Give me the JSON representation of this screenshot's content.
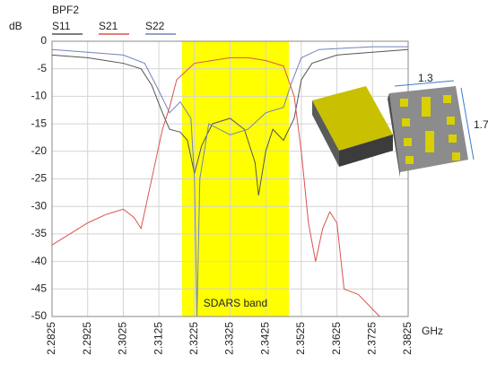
{
  "chart_data": {
    "type": "line",
    "title": "BPF2",
    "y_label": "dB",
    "x_label": "GHz",
    "xlim": [
      2.2825,
      2.3825
    ],
    "xticks": [
      2.2825,
      2.2925,
      2.3025,
      2.3125,
      2.3225,
      2.3325,
      2.3425,
      2.3525,
      2.3625,
      2.3725,
      2.3825
    ],
    "ylim": [
      -50,
      0
    ],
    "yticks": [
      0,
      -5,
      -10,
      -15,
      -20,
      -25,
      -30,
      -35,
      -40,
      -45,
      -50
    ],
    "grid": true,
    "band": {
      "xlim": [
        2.319,
        2.349
      ],
      "label": "SDARS band",
      "color": "#ffff00"
    },
    "series": [
      {
        "name": "S11",
        "color": "#555555",
        "x": [
          2.2825,
          2.2925,
          2.3025,
          2.3075,
          2.3105,
          2.3135,
          2.3155,
          2.3185,
          2.3205,
          2.3225,
          2.3245,
          2.3275,
          2.3325,
          2.3365,
          2.3395,
          2.3405,
          2.3425,
          2.3445,
          2.3475,
          2.3505,
          2.3525,
          2.3555,
          2.3625,
          2.3725,
          2.3825
        ],
        "values": [
          -2.5,
          -3,
          -4,
          -5,
          -8,
          -13,
          -16,
          -16.5,
          -18,
          -24,
          -19,
          -15,
          -14,
          -16,
          -22,
          -28,
          -20,
          -16,
          -18,
          -14,
          -7,
          -4,
          -2.5,
          -2,
          -1.5
        ]
      },
      {
        "name": "S21",
        "color": "#d9534f",
        "x": [
          2.2825,
          2.2875,
          2.2925,
          2.2975,
          2.3025,
          2.3055,
          2.3075,
          2.3095,
          2.3115,
          2.3135,
          2.3155,
          2.3175,
          2.3225,
          2.3275,
          2.3325,
          2.3375,
          2.3425,
          2.3475,
          2.3505,
          2.3525,
          2.3545,
          2.3565,
          2.3585,
          2.3605,
          2.3625,
          2.3645,
          2.3685,
          2.3745
        ],
        "values": [
          -37,
          -35,
          -33,
          -31.5,
          -30.5,
          -32,
          -34,
          -28,
          -22,
          -16,
          -12,
          -7,
          -4,
          -3.5,
          -3,
          -3,
          -3.5,
          -4.5,
          -10,
          -20,
          -33,
          -40,
          -34,
          -31,
          -33,
          -45,
          -46,
          -50
        ]
      },
      {
        "name": "S22",
        "color": "#7482b8",
        "x": [
          2.2825,
          2.2925,
          2.3025,
          2.3085,
          2.3125,
          2.3155,
          2.3185,
          2.3215,
          2.3225,
          2.3232,
          2.324,
          2.3265,
          2.3325,
          2.3375,
          2.3425,
          2.3475,
          2.3495,
          2.3525,
          2.3575,
          2.3725,
          2.3825
        ],
        "values": [
          -1.5,
          -2,
          -2.5,
          -4,
          -9,
          -13,
          -11,
          -14,
          -25,
          -50,
          -25,
          -15,
          -17,
          -16,
          -13,
          -12,
          -8,
          -3,
          -1.5,
          -1,
          -1
        ]
      }
    ]
  },
  "inset": {
    "width_label": "1.3",
    "height_label": "1.7"
  }
}
